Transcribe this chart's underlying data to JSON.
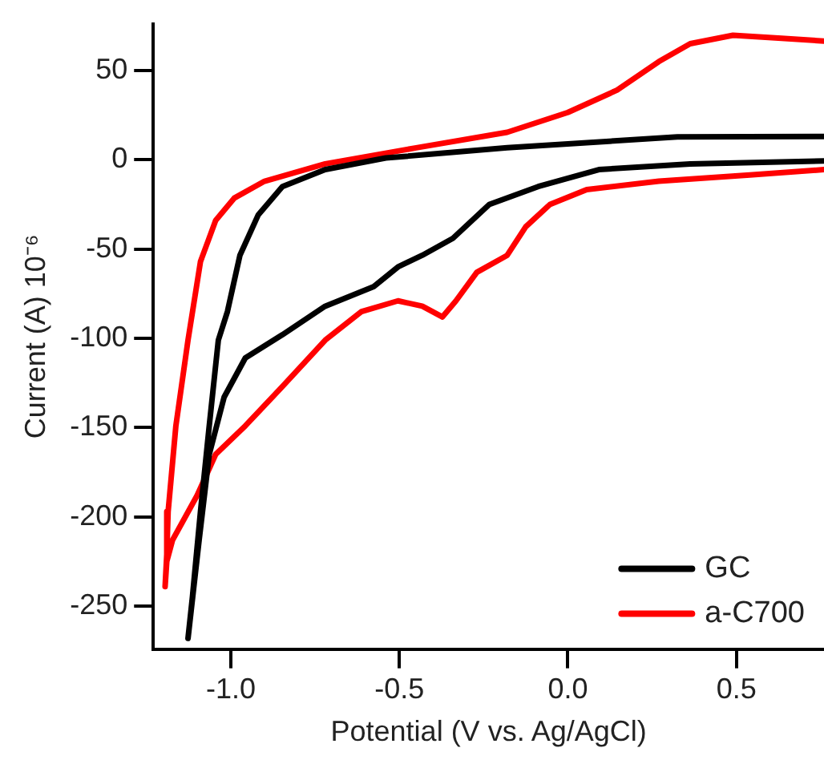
{
  "chart_data": {
    "type": "line",
    "xlabel": "Potential (V vs. Ag/AgCl)",
    "ylabel": "Current (A) 10⁻⁶",
    "xlim": [
      -1.23,
      0.76
    ],
    "xticks": [
      {
        "value": -1.0,
        "label": "-1.0"
      },
      {
        "value": -0.5,
        "label": "-0.5"
      },
      {
        "value": 0,
        "label": "0.0"
      },
      {
        "value": 0.5,
        "label": "0.5"
      }
    ],
    "ylim": [
      -274,
      76
    ],
    "yticks": [
      50,
      0,
      -50,
      -100,
      -150,
      -200,
      -250
    ],
    "grid": false,
    "legend": "bottom right",
    "marker": "none",
    "line_style": "solid",
    "series": [
      {
        "name": "GC",
        "color": "#000000",
        "x": [
          0.76,
          0.325,
          -0.18,
          -0.54,
          -0.72,
          -0.847,
          -0.919,
          -0.973,
          -1.01,
          -1.037,
          -1.064,
          -1.09,
          -1.114,
          -1.127,
          -1.094,
          -1.064,
          -1.02,
          -0.957,
          -0.847,
          -0.72,
          -0.576,
          -0.504,
          -0.432,
          -0.341,
          -0.233,
          -0.088,
          0.092,
          0.363,
          0.76
        ],
        "values": [
          13,
          12.8,
          6.7,
          1,
          -5.5,
          -15,
          -31,
          -53.5,
          -85,
          -101,
          -149,
          -197,
          -245,
          -268,
          -213,
          -165,
          -133,
          -111,
          -98,
          -82,
          -71,
          -60,
          -53.5,
          -44,
          -25,
          -15,
          -5.5,
          -2.3,
          -0.7
        ]
      },
      {
        "name": "a-C700",
        "color": "#ff0000",
        "x": [
          0.76,
          0.634,
          0.49,
          0.363,
          0.27,
          0.146,
          0,
          -0.18,
          -0.45,
          -0.72,
          -0.9,
          -0.99,
          -1.045,
          -1.09,
          -1.127,
          -1.163,
          -1.186,
          -1.19,
          -1.195,
          -1.19,
          -1.173,
          -1.1,
          -1.045,
          -0.957,
          -0.847,
          -0.72,
          -0.612,
          -0.504,
          -0.432,
          -0.372,
          -0.332,
          -0.27,
          -0.18,
          -0.125,
          -0.053,
          0.056,
          0.27,
          0.54,
          0.76
        ],
        "values": [
          66.5,
          68,
          69.7,
          65,
          55,
          39,
          26.5,
          15.4,
          6.7,
          -2.3,
          -12,
          -21.5,
          -34,
          -57,
          -101,
          -149,
          -197,
          -221,
          -239,
          -225,
          -213,
          -188,
          -165,
          -149,
          -127,
          -101,
          -85,
          -79,
          -82,
          -88,
          -79,
          -63,
          -53.5,
          -37.5,
          -25,
          -16.7,
          -12,
          -8.5,
          -5.5
        ]
      }
    ]
  }
}
